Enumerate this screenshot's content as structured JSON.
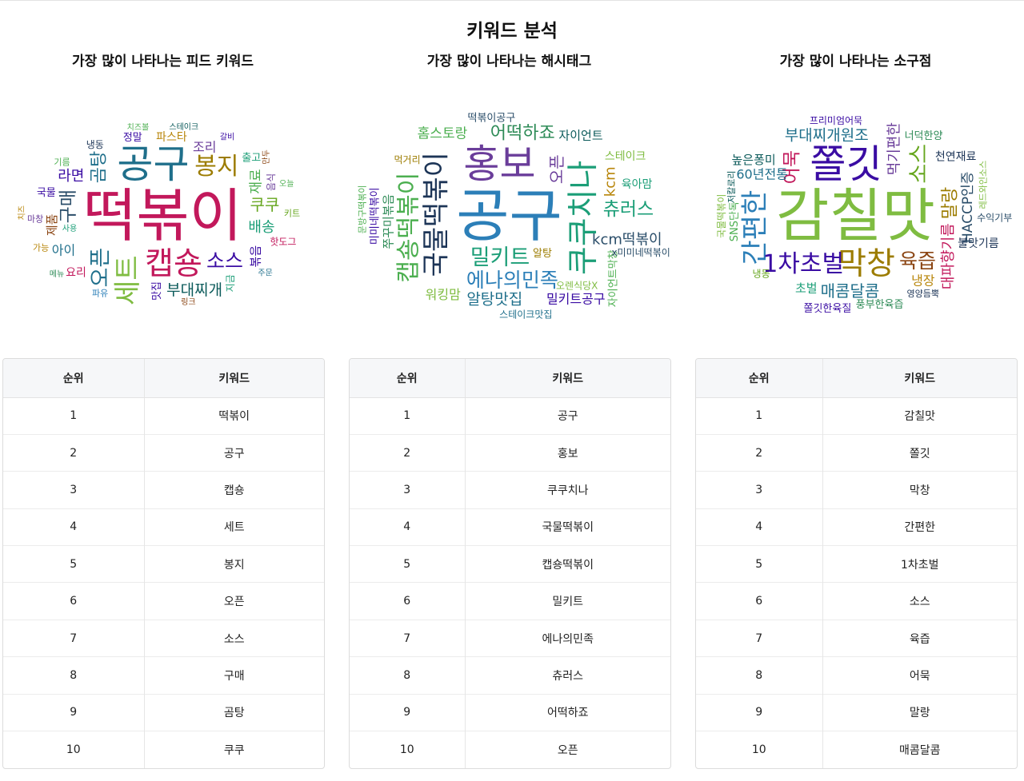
{
  "page_title": "키워드 분석",
  "columns": {
    "rank": "순위",
    "keyword": "키워드"
  },
  "panels": [
    {
      "title": "가장 많이 나타나는 피드 키워드",
      "rows": [
        {
          "rank": "1",
          "keyword": "떡볶이"
        },
        {
          "rank": "2",
          "keyword": "공구"
        },
        {
          "rank": "3",
          "keyword": "캡숑"
        },
        {
          "rank": "4",
          "keyword": "세트"
        },
        {
          "rank": "5",
          "keyword": "봉지"
        },
        {
          "rank": "6",
          "keyword": "오픈"
        },
        {
          "rank": "7",
          "keyword": "소스"
        },
        {
          "rank": "8",
          "keyword": "구매"
        },
        {
          "rank": "9",
          "keyword": "곰탕"
        },
        {
          "rank": "10",
          "keyword": "쿠쿠"
        }
      ],
      "cloud_words": [
        "떡볶이",
        "공구",
        "캡숑",
        "세트",
        "봉지",
        "오픈",
        "소스",
        "구매",
        "곰탕",
        "쿠쿠",
        "부대찌개",
        "배송",
        "라면",
        "재료",
        "조리",
        "아이",
        "볶음",
        "제품",
        "파스타",
        "요리",
        "맛집",
        "정말",
        "국물",
        "출고",
        "음식",
        "지금",
        "냉동",
        "핫도그",
        "마창",
        "기름",
        "키트",
        "파유",
        "가능",
        "사용",
        "링크",
        "치즈볼",
        "스테이크",
        "갈비",
        "오늘",
        "주문",
        "메뉴",
        "만두",
        "치즈"
      ]
    },
    {
      "title": "가장 많이 나타나는 해시태그",
      "rows": [
        {
          "rank": "1",
          "keyword": "공구"
        },
        {
          "rank": "2",
          "keyword": "홍보"
        },
        {
          "rank": "3",
          "keyword": "쿠쿠치나"
        },
        {
          "rank": "4",
          "keyword": "국물떡볶이"
        },
        {
          "rank": "5",
          "keyword": "캡숑떡볶이"
        },
        {
          "rank": "6",
          "keyword": "밀키트"
        },
        {
          "rank": "7",
          "keyword": "에나의민족"
        },
        {
          "rank": "8",
          "keyword": "츄러스"
        },
        {
          "rank": "9",
          "keyword": "어떡하죠"
        },
        {
          "rank": "10",
          "keyword": "오픈"
        }
      ],
      "cloud_words": [
        "공구",
        "홍보",
        "쿠쿠치나",
        "국물떡볶이",
        "캡숑떡볶이",
        "밀키트",
        "에나의민족",
        "츄러스",
        "어떡하죠",
        "오픈",
        "알탕맛집",
        "kcm떡볶이",
        "kcm",
        "홈스토랑",
        "밀키트공구",
        "워킹맘",
        "쭈꾸미볶음",
        "자이언트",
        "육아맘",
        "스테이크",
        "알탕",
        "떡볶이공구",
        "미미네떡볶이",
        "자이언트막창",
        "x미미네떡볶이",
        "오렌식당X",
        "스테이크맛집",
        "먹거리",
        "문방구떡볶이"
      ]
    },
    {
      "title": "가장 많이 나타나는 소구점",
      "rows": [
        {
          "rank": "1",
          "keyword": "감칠맛"
        },
        {
          "rank": "2",
          "keyword": "쫄깃"
        },
        {
          "rank": "3",
          "keyword": "막창"
        },
        {
          "rank": "4",
          "keyword": "간편한"
        },
        {
          "rank": "5",
          "keyword": "1차초벌"
        },
        {
          "rank": "6",
          "keyword": "소스"
        },
        {
          "rank": "7",
          "keyword": "육즙"
        },
        {
          "rank": "8",
          "keyword": "어묵"
        },
        {
          "rank": "9",
          "keyword": "말랑"
        },
        {
          "rank": "10",
          "keyword": "매콤달콤"
        }
      ],
      "cloud_words": [
        "감칠맛",
        "쫄깃",
        "막창",
        "간편한",
        "1차초벌",
        "소스",
        "육즙",
        "어묵",
        "말랑",
        "매콤달콤",
        "부대찌개원조",
        "먹기편한",
        "대파향기름",
        "HACCP인증",
        "60년전통",
        "냉장",
        "초벌",
        "높은퐁미",
        "불맛기름",
        "천연재료",
        "풍부한육즙",
        "SNS단독",
        "쫄깃한육질",
        "너덕한양",
        "냉동",
        "수익기부",
        "프리미엄어묵",
        "국물떡볶이",
        "레드와인소스",
        "영양듬뿍",
        "저칼로리"
      ]
    }
  ]
}
